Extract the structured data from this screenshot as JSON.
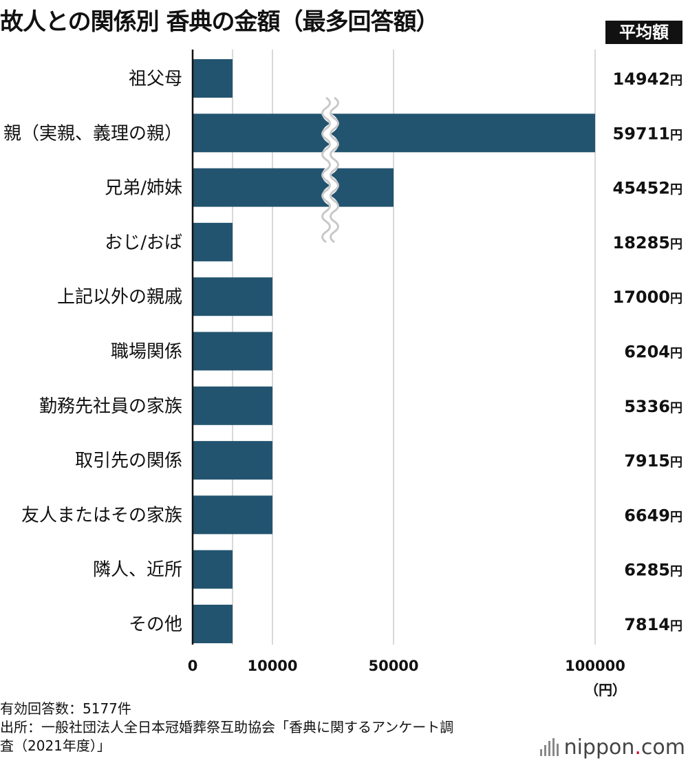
{
  "title": "故人との関係別 香典の金額（最多回答額）",
  "avg_header": "平均額",
  "unit_label": "（円）",
  "footnotes": [
    "有効回答数：5177件",
    "出所：一般社団法人全日本冠婚葬祭互助協会「香典に関するアンケート調",
    "査（2021年度）」"
  ],
  "brand": {
    "name": "nippon",
    "dot": ".",
    "suffix": "com"
  },
  "colors": {
    "bar": "#23546f",
    "grid": "#cccccc",
    "axis": "#111111",
    "header_bg": "#111111"
  },
  "chart_data": {
    "type": "bar",
    "orientation": "horizontal",
    "title": "故人との関係別 香典の金額（最多回答額）",
    "categories": [
      "祖父母",
      "親（実親、義理の親）",
      "兄弟/姉妹",
      "おじ/おば",
      "上記以外の親戚",
      "職場関係",
      "勤務先社員の家族",
      "取引先の関係",
      "友人またはその家族",
      "隣人、近所",
      "その他"
    ],
    "values": [
      5000,
      100000,
      50000,
      5000,
      10000,
      10000,
      10000,
      10000,
      10000,
      5000,
      5000
    ],
    "xticks": [
      0,
      10000,
      50000,
      100000
    ],
    "xunit": "（円）",
    "axis_break": "between 10000 and 50000",
    "avg_values": [
      14942,
      59711,
      45452,
      18285,
      17000,
      6204,
      5336,
      7915,
      6649,
      6285,
      7814
    ],
    "avg_unit": "円",
    "grid": true
  }
}
